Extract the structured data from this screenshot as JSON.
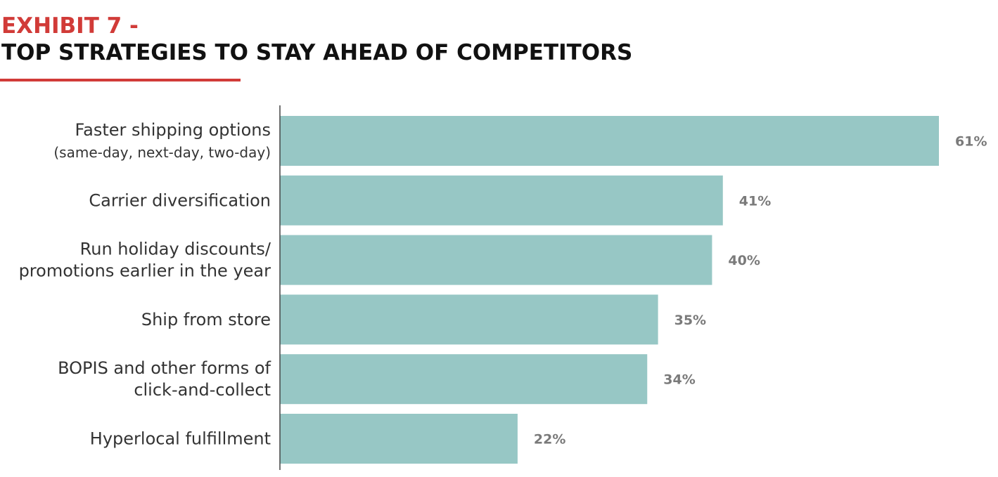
{
  "header": {
    "exhibit_label": "EXHIBIT 7 -",
    "title": "TOP STRATEGIES TO STAY AHEAD OF COMPETITORS",
    "accent_color": "#d13b38"
  },
  "chart_data": {
    "type": "bar",
    "orientation": "horizontal",
    "categories": [
      [
        "Faster shipping options",
        "(same-day, next-day, two-day)"
      ],
      [
        "Carrier diversification"
      ],
      [
        "Run holiday discounts/",
        "promotions earlier in the year"
      ],
      [
        "Ship from store"
      ],
      [
        "BOPIS and other forms of",
        "click-and-collect"
      ],
      [
        "Hyperlocal fulfillment"
      ]
    ],
    "values": [
      61,
      41,
      40,
      35,
      34,
      22
    ],
    "value_labels": [
      "61%",
      "41%",
      "40%",
      "35%",
      "34%",
      "22%"
    ],
    "unit": "%",
    "xlim": [
      0,
      61
    ],
    "bar_color": "#97c7c5",
    "label_color": "#333333",
    "value_label_color": "#7a7a7a",
    "axis_color": "#444444",
    "grid": false,
    "legend": "none"
  }
}
